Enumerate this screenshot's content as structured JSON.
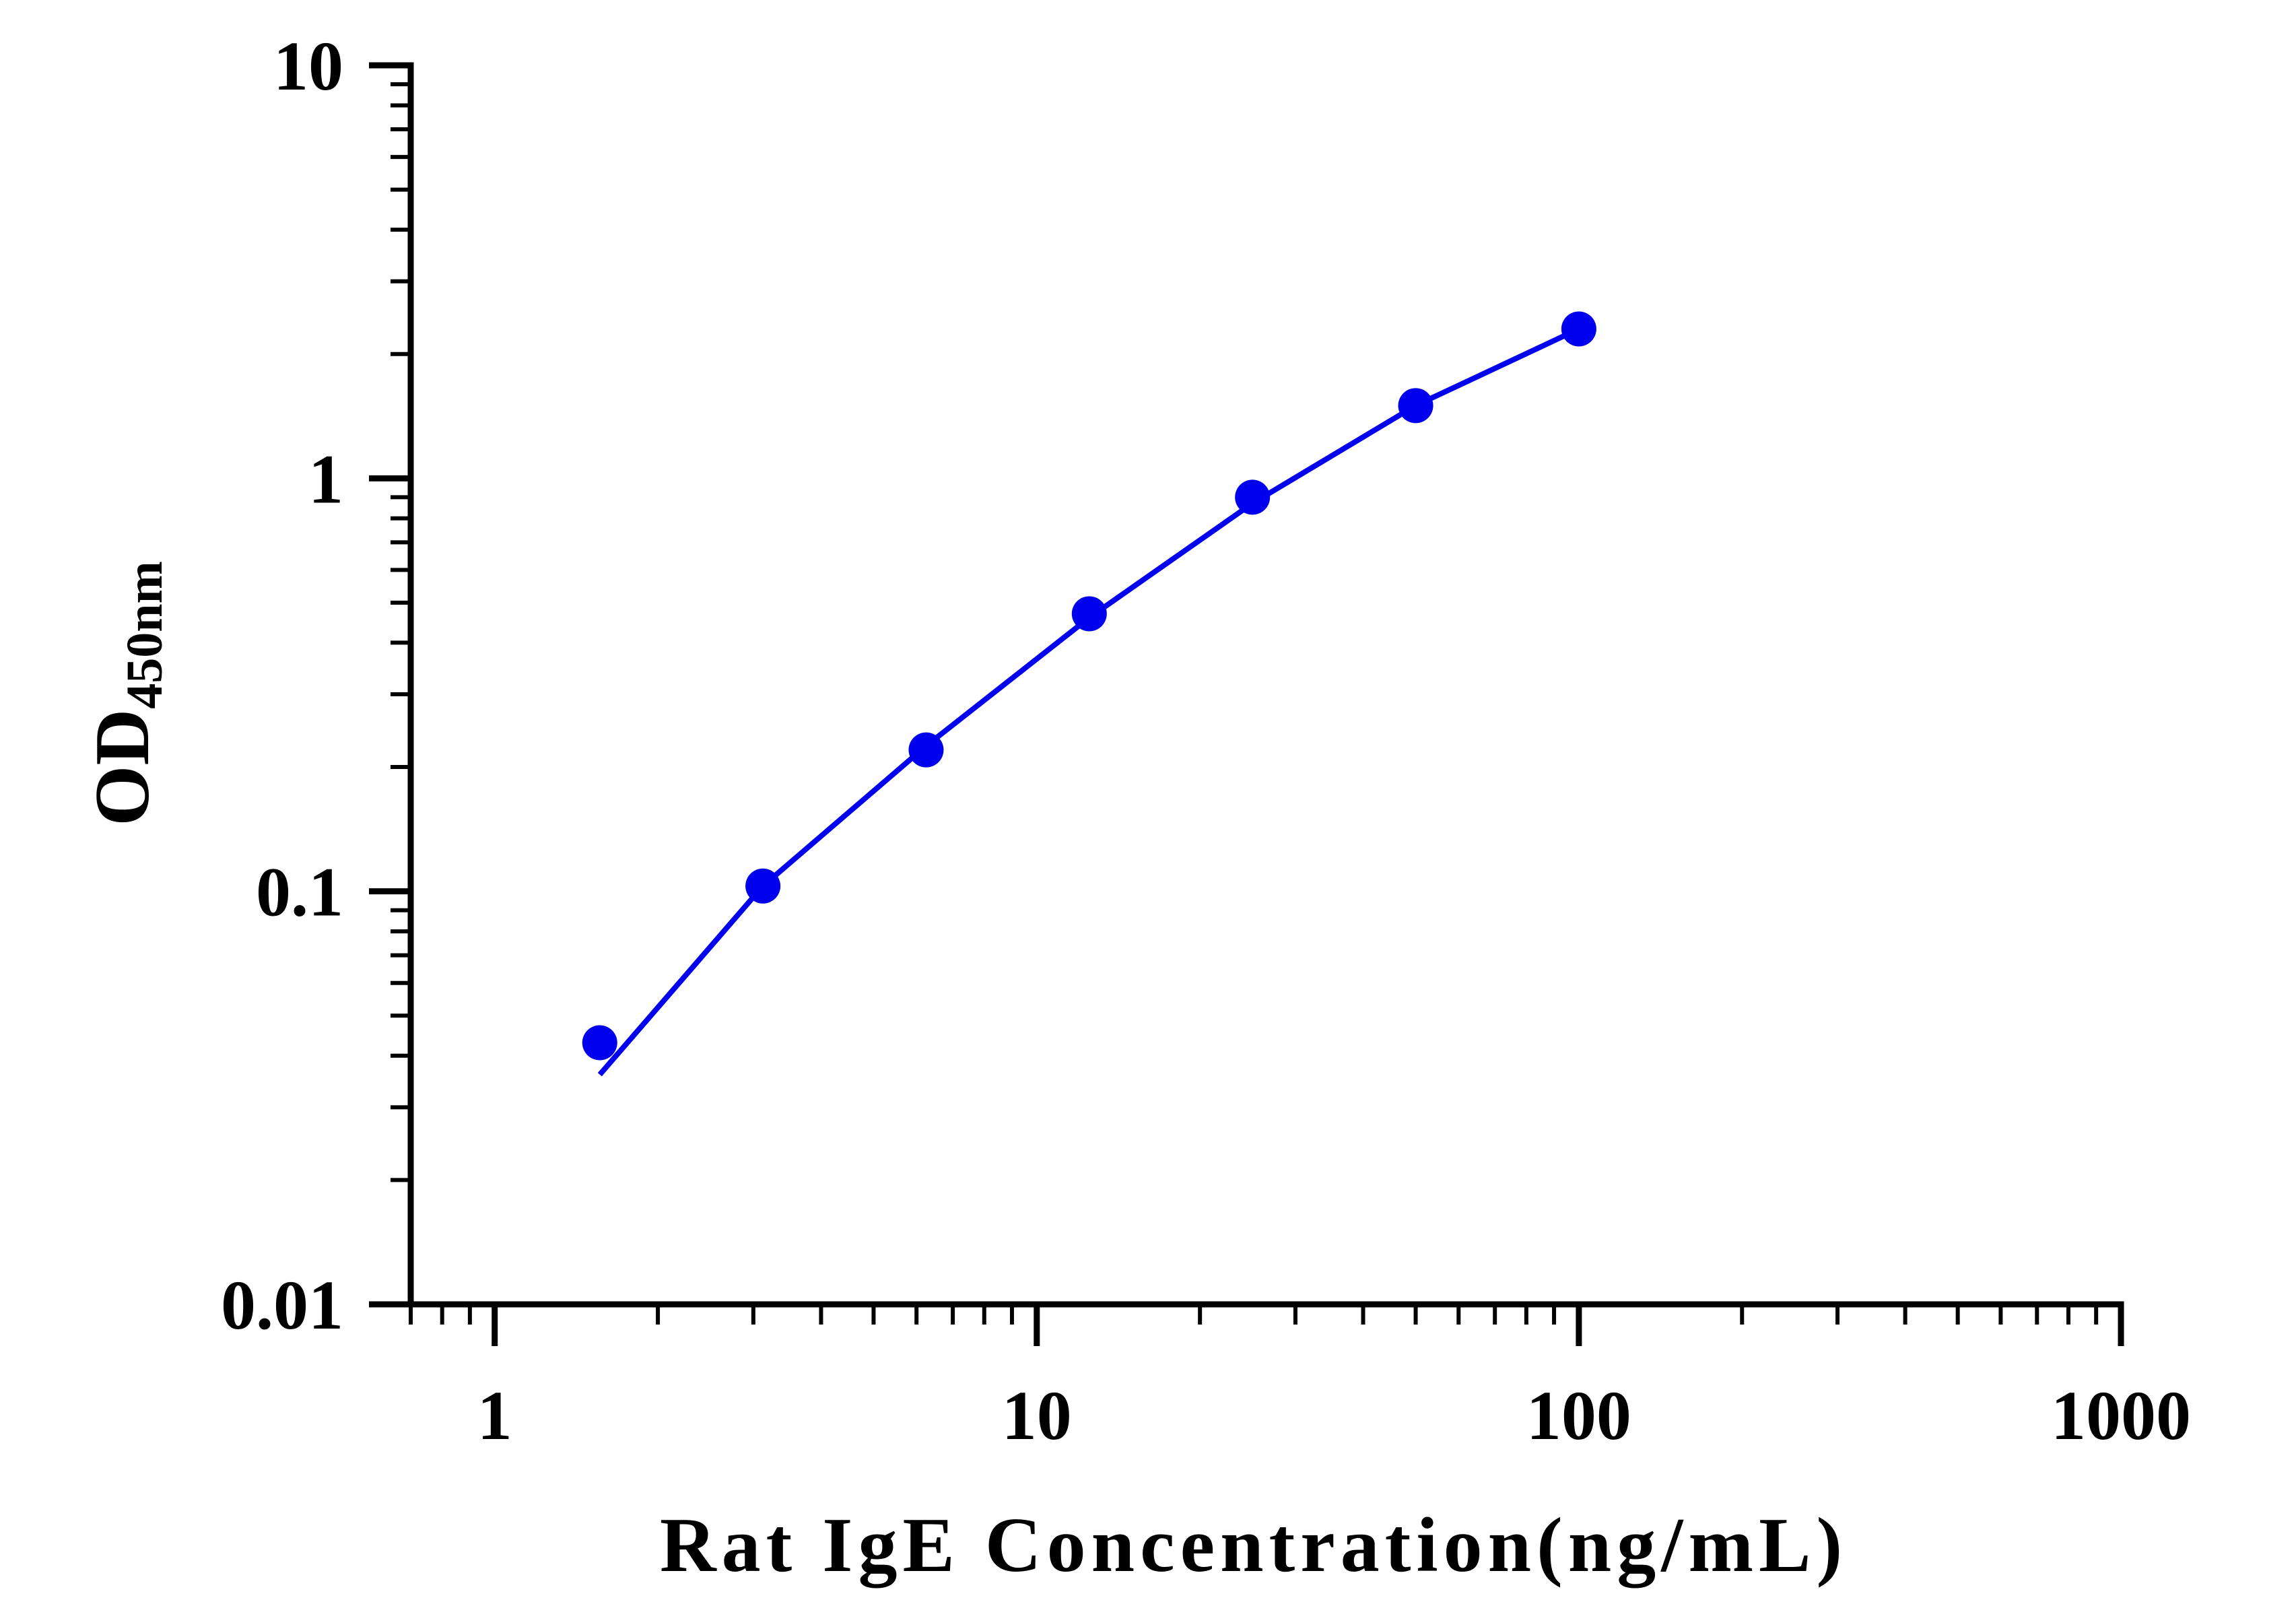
{
  "chart_data": {
    "type": "line",
    "title": "",
    "xlabel": "Rat IgE Concentration(ng/mL)",
    "ylabel": {
      "main": "OD",
      "subscript": "450nm"
    },
    "x_scale": "log",
    "y_scale": "log",
    "xlim": [
      0.7,
      1000
    ],
    "ylim": [
      0.01,
      10
    ],
    "x_ticks": [
      1,
      10,
      100,
      1000
    ],
    "x_tick_labels": [
      "1",
      "10",
      "100",
      "1000"
    ],
    "y_ticks": [
      0.01,
      0.1,
      1,
      10
    ],
    "y_tick_labels": [
      "0.01",
      "0.1",
      "1",
      "10"
    ],
    "grid": false,
    "legend": "none",
    "color": "#0000ee",
    "series": [
      {
        "points": [
          {
            "x": 1.5625,
            "y": 0.043
          },
          {
            "x": 3.125,
            "y": 0.103
          },
          {
            "x": 6.25,
            "y": 0.22
          },
          {
            "x": 12.5,
            "y": 0.47
          },
          {
            "x": 25,
            "y": 0.9
          },
          {
            "x": 50,
            "y": 1.5
          },
          {
            "x": 100,
            "y": 2.3
          }
        ],
        "fit_curve": [
          {
            "x": 1.5625,
            "y": 0.036
          },
          {
            "x": 3.125,
            "y": 0.103
          },
          {
            "x": 6.25,
            "y": 0.225
          },
          {
            "x": 12.5,
            "y": 0.46
          },
          {
            "x": 25,
            "y": 0.87
          },
          {
            "x": 50,
            "y": 1.5
          },
          {
            "x": 100,
            "y": 2.3
          }
        ]
      }
    ]
  }
}
